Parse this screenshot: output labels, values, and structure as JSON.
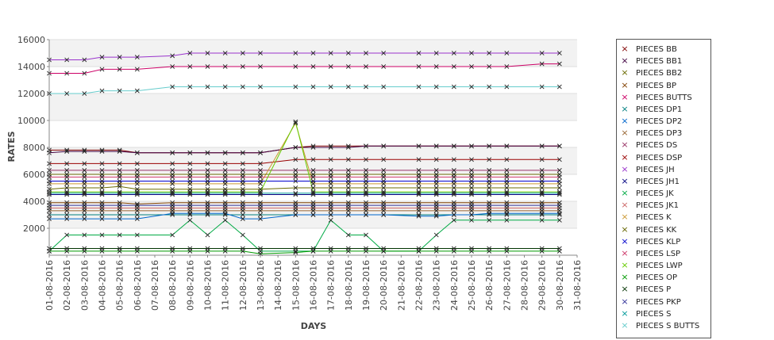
{
  "chart_data": {
    "type": "line",
    "xlabel": "DAYS",
    "ylabel": "RATES",
    "ylim": [
      0,
      16000
    ],
    "yticks": [
      2000,
      4000,
      6000,
      8000,
      10000,
      12000,
      14000,
      16000
    ],
    "x": [
      "01-08-2016",
      "02-08-2016",
      "03-08-2016",
      "04-08-2016",
      "05-08-2016",
      "06-08-2016",
      "07-08-2016",
      "08-08-2016",
      "09-08-2016",
      "10-08-2016",
      "11-08-2016",
      "12-08-2016",
      "13-08-2016",
      "14-08-2016",
      "15-08-2016",
      "16-08-2016",
      "17-08-2016",
      "18-08-2016",
      "19-08-2016",
      "20-08-2016",
      "21-08-2016",
      "22-08-2016",
      "23-08-2016",
      "24-08-2016",
      "25-08-2016",
      "26-08-2016",
      "27-08-2016",
      "28-08-2016",
      "29-08-2016",
      "30-08-2016",
      "31-08-2016"
    ],
    "legend_position": "right",
    "series": [
      {
        "name": "PIECES BB",
        "color": "#800000",
        "values": [
          7800,
          7800,
          7800,
          7800,
          7800,
          7600,
          null,
          7600,
          7600,
          7600,
          7600,
          7600,
          7600,
          null,
          8000,
          8100,
          8100,
          8100,
          8100,
          8100,
          null,
          8100,
          8100,
          8100,
          8100,
          8100,
          8100,
          null,
          8100,
          8100,
          null
        ]
      },
      {
        "name": "PIECES BB1",
        "color": "#400040",
        "values": [
          7600,
          7700,
          7700,
          7700,
          7700,
          7600,
          null,
          7600,
          7600,
          7600,
          7600,
          7600,
          7600,
          null,
          8000,
          8000,
          8000,
          8000,
          8100,
          8100,
          null,
          8100,
          8100,
          8100,
          8100,
          8100,
          8100,
          null,
          8100,
          8100,
          null
        ]
      },
      {
        "name": "PIECES BB2",
        "color": "#6b6b00",
        "values": [
          4900,
          5000,
          5000,
          5000,
          5100,
          4900,
          null,
          4900,
          4900,
          4900,
          4900,
          4900,
          4900,
          null,
          5000,
          5000,
          5000,
          5000,
          5000,
          5000,
          null,
          5000,
          5000,
          5000,
          5000,
          5000,
          5000,
          null,
          5000,
          5000,
          null
        ]
      },
      {
        "name": "PIECES BP",
        "color": "#804000",
        "values": [
          3900,
          3900,
          3900,
          3900,
          3900,
          3800,
          null,
          3900,
          3900,
          3900,
          3900,
          3900,
          3900,
          null,
          3900,
          3900,
          3900,
          3900,
          3900,
          3900,
          null,
          3900,
          3900,
          3900,
          3900,
          3900,
          3900,
          null,
          3900,
          3900,
          null
        ]
      },
      {
        "name": "PIECES BUTTS",
        "color": "#cc0066",
        "values": [
          13500,
          13500,
          13500,
          13800,
          13800,
          13800,
          null,
          14000,
          14000,
          14000,
          14000,
          14000,
          14000,
          null,
          14000,
          14000,
          14000,
          14000,
          14000,
          14000,
          null,
          14000,
          14000,
          14000,
          14000,
          14000,
          14000,
          null,
          14200,
          14200,
          null
        ]
      },
      {
        "name": "PIECES DP1",
        "color": "#008080",
        "values": [
          3000,
          3000,
          3000,
          3000,
          3000,
          3000,
          null,
          3000,
          3000,
          3000,
          3000,
          3000,
          3000,
          null,
          3000,
          3000,
          3000,
          3000,
          3000,
          3000,
          null,
          3000,
          3000,
          3000,
          3000,
          3000,
          3000,
          null,
          3000,
          3000,
          null
        ]
      },
      {
        "name": "PIECES DP2",
        "color": "#0066cc",
        "values": [
          2700,
          2700,
          2700,
          2700,
          2700,
          2700,
          null,
          3100,
          3100,
          3100,
          3100,
          2700,
          2700,
          null,
          3000,
          3000,
          3000,
          3000,
          3000,
          3000,
          null,
          2900,
          2900,
          3000,
          3000,
          3100,
          3100,
          null,
          3100,
          3100,
          null
        ]
      },
      {
        "name": "PIECES DP3",
        "color": "#996633",
        "values": [
          3300,
          3300,
          3300,
          3300,
          3300,
          3300,
          null,
          3300,
          3300,
          3300,
          3300,
          3300,
          3300,
          null,
          3300,
          3300,
          3300,
          3300,
          3300,
          3300,
          null,
          3300,
          3300,
          3300,
          3300,
          3300,
          3300,
          null,
          3300,
          3300,
          null
        ]
      },
      {
        "name": "PIECES DS",
        "color": "#993366",
        "values": [
          6300,
          6300,
          6300,
          6300,
          6300,
          6300,
          null,
          6300,
          6300,
          6300,
          6300,
          6300,
          6300,
          null,
          6300,
          6300,
          6300,
          6300,
          6300,
          6300,
          null,
          6300,
          6300,
          6300,
          6300,
          6300,
          6300,
          null,
          6300,
          6300,
          null
        ]
      },
      {
        "name": "PIECES DSP",
        "color": "#990000",
        "values": [
          6800,
          6800,
          6800,
          6800,
          6800,
          6800,
          null,
          6800,
          6800,
          6800,
          6800,
          6800,
          6800,
          null,
          7100,
          7100,
          7100,
          7100,
          7100,
          7100,
          null,
          7100,
          7100,
          7100,
          7100,
          7100,
          7100,
          null,
          7100,
          7100,
          null
        ]
      },
      {
        "name": "PIECES JH",
        "color": "#9933cc",
        "values": [
          14500,
          14500,
          14500,
          14700,
          14700,
          14700,
          null,
          14800,
          15000,
          15000,
          15000,
          15000,
          15000,
          null,
          15000,
          15000,
          15000,
          15000,
          15000,
          15000,
          null,
          15000,
          15000,
          15000,
          15000,
          15000,
          15000,
          null,
          15000,
          15000,
          null
        ]
      },
      {
        "name": "PIECES JH1",
        "color": "#000080",
        "values": [
          4500,
          4500,
          4500,
          4500,
          4500,
          4500,
          null,
          4500,
          4500,
          4500,
          4500,
          4500,
          4500,
          null,
          4500,
          4500,
          4500,
          4500,
          4500,
          4500,
          null,
          4500,
          4500,
          4500,
          4500,
          4500,
          4500,
          null,
          4500,
          4500,
          null
        ]
      },
      {
        "name": "PIECES JK",
        "color": "#00aa44",
        "values": [
          300,
          1500,
          1500,
          1500,
          1500,
          1500,
          null,
          1500,
          2600,
          1500,
          2600,
          1500,
          300,
          null,
          300,
          300,
          2600,
          1500,
          1500,
          300,
          null,
          300,
          1500,
          2600,
          2600,
          2600,
          2600,
          null,
          2600,
          2600,
          null
        ]
      },
      {
        "name": "PIECES JK1",
        "color": "#cc6666",
        "values": [
          3500,
          3500,
          3500,
          3500,
          3500,
          3500,
          null,
          3500,
          3500,
          3500,
          3500,
          3500,
          3500,
          null,
          3500,
          3500,
          3500,
          3500,
          3500,
          3500,
          null,
          3500,
          3500,
          3500,
          3500,
          3500,
          3500,
          null,
          3500,
          3500,
          null
        ]
      },
      {
        "name": "PIECES K",
        "color": "#cc9933",
        "values": [
          5300,
          5300,
          5300,
          5300,
          5300,
          5300,
          null,
          5300,
          5300,
          5300,
          5300,
          5300,
          5300,
          null,
          9800,
          5300,
          5300,
          5300,
          5300,
          5300,
          null,
          5300,
          5300,
          5300,
          5300,
          5300,
          5300,
          null,
          5300,
          5300,
          null
        ]
      },
      {
        "name": "PIECES KK",
        "color": "#666600",
        "values": [
          6000,
          6000,
          6000,
          6000,
          6000,
          6000,
          null,
          6000,
          6000,
          6000,
          6000,
          6000,
          6000,
          null,
          6000,
          6000,
          6000,
          6000,
          6000,
          6000,
          null,
          6000,
          6000,
          6000,
          6000,
          6000,
          6000,
          null,
          6000,
          6000,
          null
        ]
      },
      {
        "name": "PIECES KLP",
        "color": "#0000cc",
        "values": [
          5500,
          5500,
          5500,
          5500,
          5500,
          5500,
          null,
          5500,
          5500,
          5500,
          5500,
          5500,
          5500,
          null,
          5500,
          5500,
          5500,
          5500,
          5500,
          5500,
          null,
          5500,
          5500,
          5500,
          5500,
          5500,
          5500,
          null,
          5500,
          5500,
          null
        ]
      },
      {
        "name": "PIECES LSP",
        "color": "#cc3366",
        "values": [
          5800,
          5800,
          5800,
          5800,
          5800,
          5800,
          null,
          5800,
          5800,
          5800,
          5800,
          5800,
          5800,
          null,
          5800,
          5800,
          5800,
          5800,
          5800,
          5800,
          null,
          5800,
          5800,
          5800,
          5800,
          5800,
          5800,
          null,
          5800,
          5800,
          null
        ]
      },
      {
        "name": "PIECES LWP",
        "color": "#66cc00",
        "values": [
          4700,
          4700,
          4700,
          4700,
          4700,
          4700,
          null,
          4700,
          4700,
          4700,
          4700,
          4700,
          4700,
          null,
          9900,
          4700,
          4700,
          4700,
          4700,
          4700,
          null,
          4700,
          4700,
          4700,
          4700,
          4700,
          4700,
          null,
          4700,
          4700,
          null
        ]
      },
      {
        "name": "PIECES OP",
        "color": "#009900",
        "values": [
          300,
          300,
          300,
          300,
          300,
          300,
          null,
          300,
          300,
          300,
          300,
          300,
          100,
          null,
          200,
          300,
          300,
          300,
          300,
          300,
          null,
          300,
          300,
          300,
          300,
          300,
          300,
          null,
          300,
          300,
          null
        ]
      },
      {
        "name": "PIECES P",
        "color": "#003300",
        "values": [
          500,
          500,
          500,
          500,
          500,
          500,
          null,
          500,
          500,
          500,
          500,
          500,
          500,
          null,
          500,
          500,
          500,
          500,
          500,
          500,
          null,
          500,
          500,
          500,
          500,
          500,
          500,
          null,
          500,
          500,
          null
        ]
      },
      {
        "name": "PIECES PKP",
        "color": "#333399",
        "values": [
          3700,
          3700,
          3700,
          3700,
          3700,
          3700,
          null,
          3700,
          3700,
          3700,
          3700,
          3700,
          3700,
          null,
          3700,
          3700,
          3700,
          3700,
          3700,
          3700,
          null,
          3700,
          3700,
          3700,
          3700,
          3700,
          3700,
          null,
          3700,
          3700,
          null
        ]
      },
      {
        "name": "PIECES S",
        "color": "#009999",
        "values": [
          4600,
          4600,
          4600,
          4600,
          4600,
          4600,
          null,
          4600,
          4600,
          4600,
          4600,
          4600,
          4600,
          null,
          4600,
          4600,
          4600,
          4600,
          4600,
          4600,
          null,
          4600,
          4600,
          4600,
          4600,
          4600,
          4600,
          null,
          4600,
          4600,
          null
        ]
      },
      {
        "name": "PIECES S BUTTS",
        "color": "#66cccc",
        "values": [
          12000,
          12000,
          12000,
          12200,
          12200,
          12200,
          null,
          12500,
          12500,
          12500,
          12500,
          12500,
          12500,
          null,
          12500,
          12500,
          12500,
          12500,
          12500,
          12500,
          null,
          12500,
          12500,
          12500,
          12500,
          12500,
          12500,
          null,
          12500,
          12500,
          null
        ]
      }
    ]
  }
}
